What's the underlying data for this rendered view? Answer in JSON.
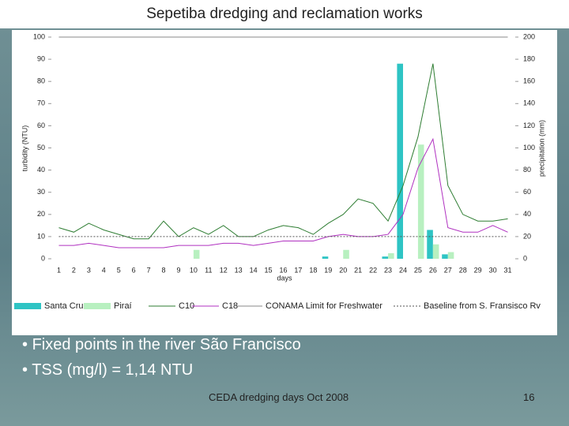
{
  "chart_data": {
    "type": "bar",
    "title": "Sepetiba dredging and reclamation works",
    "x_label": "days",
    "y_label": "turbidity (NTU)",
    "y2_label": "precipitation (mm)",
    "categories": [
      "1",
      "2",
      "3",
      "4",
      "5",
      "6",
      "7",
      "8",
      "9",
      "10",
      "11",
      "12",
      "13",
      "14",
      "15",
      "16",
      "17",
      "18",
      "19",
      "20",
      "21",
      "22",
      "23",
      "24",
      "25",
      "26",
      "27",
      "28",
      "29",
      "30",
      "31"
    ],
    "ylim": [
      0,
      100
    ],
    "yticks": [
      0,
      10,
      20,
      30,
      40,
      50,
      60,
      70,
      80,
      90,
      100
    ],
    "y2lim": [
      0,
      200
    ],
    "y2ticks": [
      0,
      20,
      40,
      60,
      80,
      100,
      120,
      140,
      160,
      180,
      200
    ],
    "series": [
      {
        "name": "Santa Cruz",
        "type": "bar",
        "axis": "y2",
        "color": "#2ec4c4",
        "values": [
          0,
          0,
          0,
          0,
          0,
          0,
          0,
          0,
          0,
          0,
          0,
          0,
          0,
          0,
          0,
          0,
          0,
          0,
          2,
          0,
          0,
          0,
          2,
          176,
          0,
          26,
          4,
          0,
          0,
          0,
          0
        ]
      },
      {
        "name": "Piraí",
        "type": "bar",
        "axis": "y2",
        "color": "#b8f0c0",
        "values": [
          0,
          0,
          0,
          0,
          0,
          0,
          0,
          0,
          0,
          8,
          0,
          0,
          0,
          0,
          0,
          0,
          0,
          0,
          0,
          8,
          0,
          0,
          5,
          0,
          103,
          13,
          6,
          0,
          0,
          0,
          0
        ]
      },
      {
        "name": "C10",
        "type": "line",
        "color": "#2e7d32",
        "linestyle": "solid",
        "values": [
          14,
          12,
          16,
          13,
          11,
          9,
          9,
          17,
          10,
          14,
          11,
          15,
          10,
          10,
          13,
          15,
          14,
          11,
          16,
          20,
          27,
          25,
          17,
          33,
          55,
          88,
          33,
          20,
          17,
          17,
          18
        ]
      },
      {
        "name": "C18",
        "type": "line",
        "color": "#b030c0",
        "linestyle": "solid",
        "values": [
          6,
          6,
          7,
          6,
          5,
          5,
          5,
          5,
          6,
          6,
          6,
          7,
          7,
          6,
          7,
          8,
          8,
          8,
          10,
          11,
          10,
          10,
          11,
          20,
          41,
          54,
          14,
          12,
          12,
          15,
          12
        ]
      },
      {
        "name": "CONAMA Limit for Freshwater",
        "type": "line",
        "color": "#888888",
        "linestyle": "solid",
        "values": [
          100,
          100,
          100,
          100,
          100,
          100,
          100,
          100,
          100,
          100,
          100,
          100,
          100,
          100,
          100,
          100,
          100,
          100,
          100,
          100,
          100,
          100,
          100,
          100,
          100,
          100,
          100,
          100,
          100,
          100,
          100
        ]
      },
      {
        "name": "Baseline from S. Fransisco Rv",
        "type": "line",
        "color": "#555555",
        "linestyle": "dotted",
        "values": [
          10,
          10,
          10,
          10,
          10,
          10,
          10,
          10,
          10,
          10,
          10,
          10,
          10,
          10,
          10,
          10,
          10,
          10,
          10,
          10,
          10,
          10,
          10,
          10,
          10,
          10,
          10,
          10,
          10,
          10,
          10
        ]
      }
    ]
  },
  "bullets": [
    "Fixed points in the river São Francisco",
    "TSS (mg/l) = 1,14 NTU"
  ],
  "footer": "CEDA dredging days Oct 2008",
  "page_number": 16
}
